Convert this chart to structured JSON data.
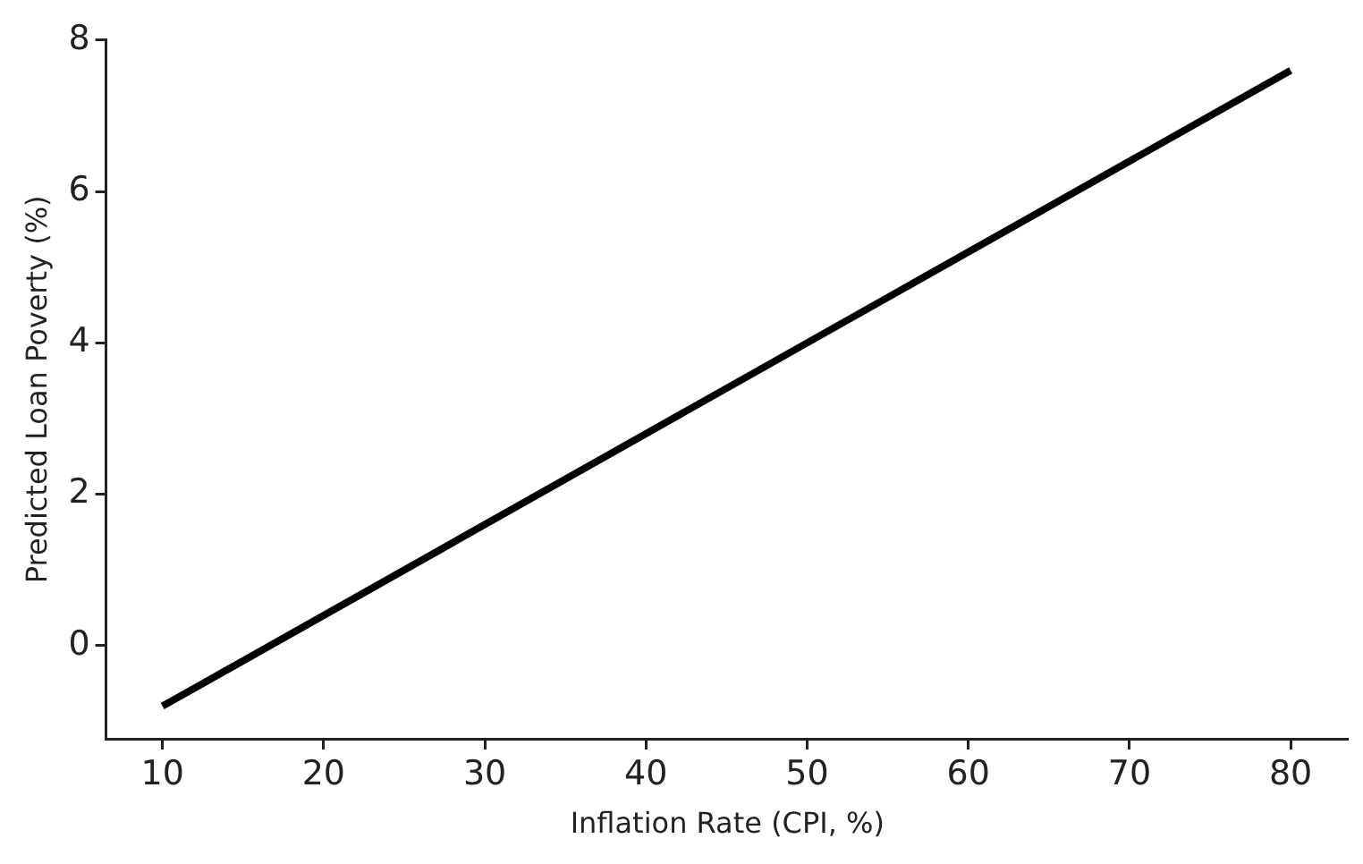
{
  "chart_data": {
    "type": "line",
    "xlabel": "Inflation Rate (CPI, %)",
    "ylabel": "Predicted Loan Poverty (%)",
    "x": [
      10,
      80
    ],
    "series": [
      {
        "color": "#000000",
        "values": [
          -0.8,
          7.6
        ]
      }
    ],
    "xlim": [
      6.5,
      83.6
    ],
    "ylim": [
      -1.23,
      8
    ],
    "xticks": [
      10,
      20,
      30,
      40,
      50,
      60,
      70,
      80
    ],
    "yticks": [
      0,
      2,
      4,
      6,
      8
    ],
    "grid": false,
    "legend": false,
    "marker": "none",
    "line_style": "solid"
  }
}
